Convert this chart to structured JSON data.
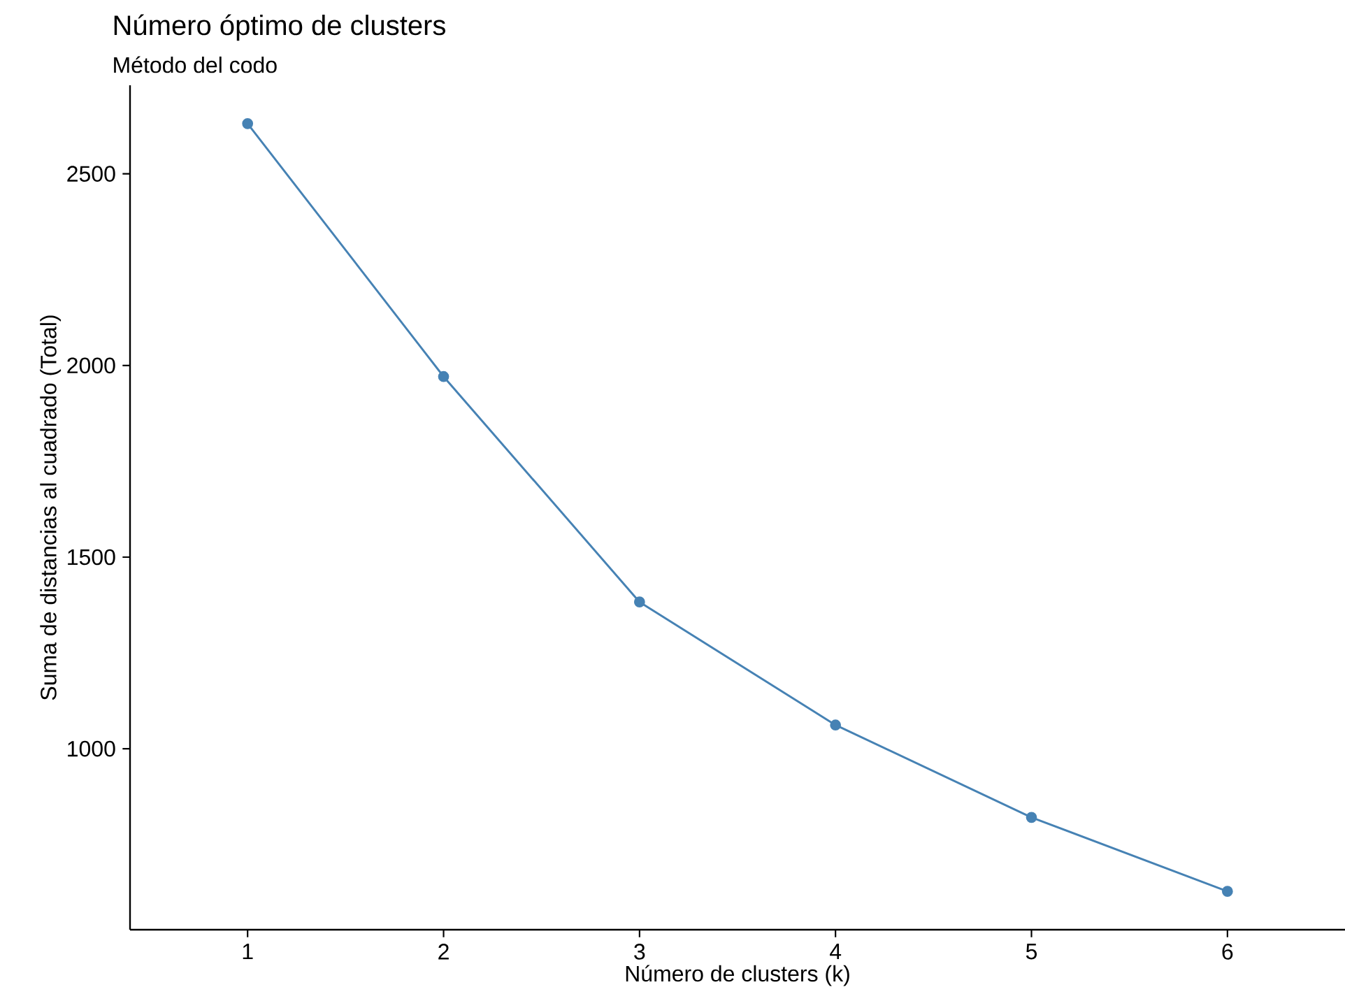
{
  "chart_data": {
    "type": "line",
    "title": "Número óptimo de clusters",
    "subtitle": "Método del codo",
    "xlabel": "Número de clusters (k)",
    "ylabel": "Suma de distancias al cuadrado (Total)",
    "x": [
      1,
      2,
      3,
      4,
      5,
      6
    ],
    "series": [
      {
        "color": "#4682b4",
        "values": [
          2631,
          1971,
          1383,
          1062,
          821,
          628
        ]
      }
    ],
    "xlim": [
      0.4,
      6.6
    ],
    "ylim": [
      528,
      2731
    ],
    "xticks": [
      1,
      2,
      3,
      4,
      5,
      6
    ],
    "yticks": [
      1000,
      1500,
      2000,
      2500
    ],
    "grid": false,
    "legend": false,
    "marker": "circle",
    "line_style": "solid"
  }
}
